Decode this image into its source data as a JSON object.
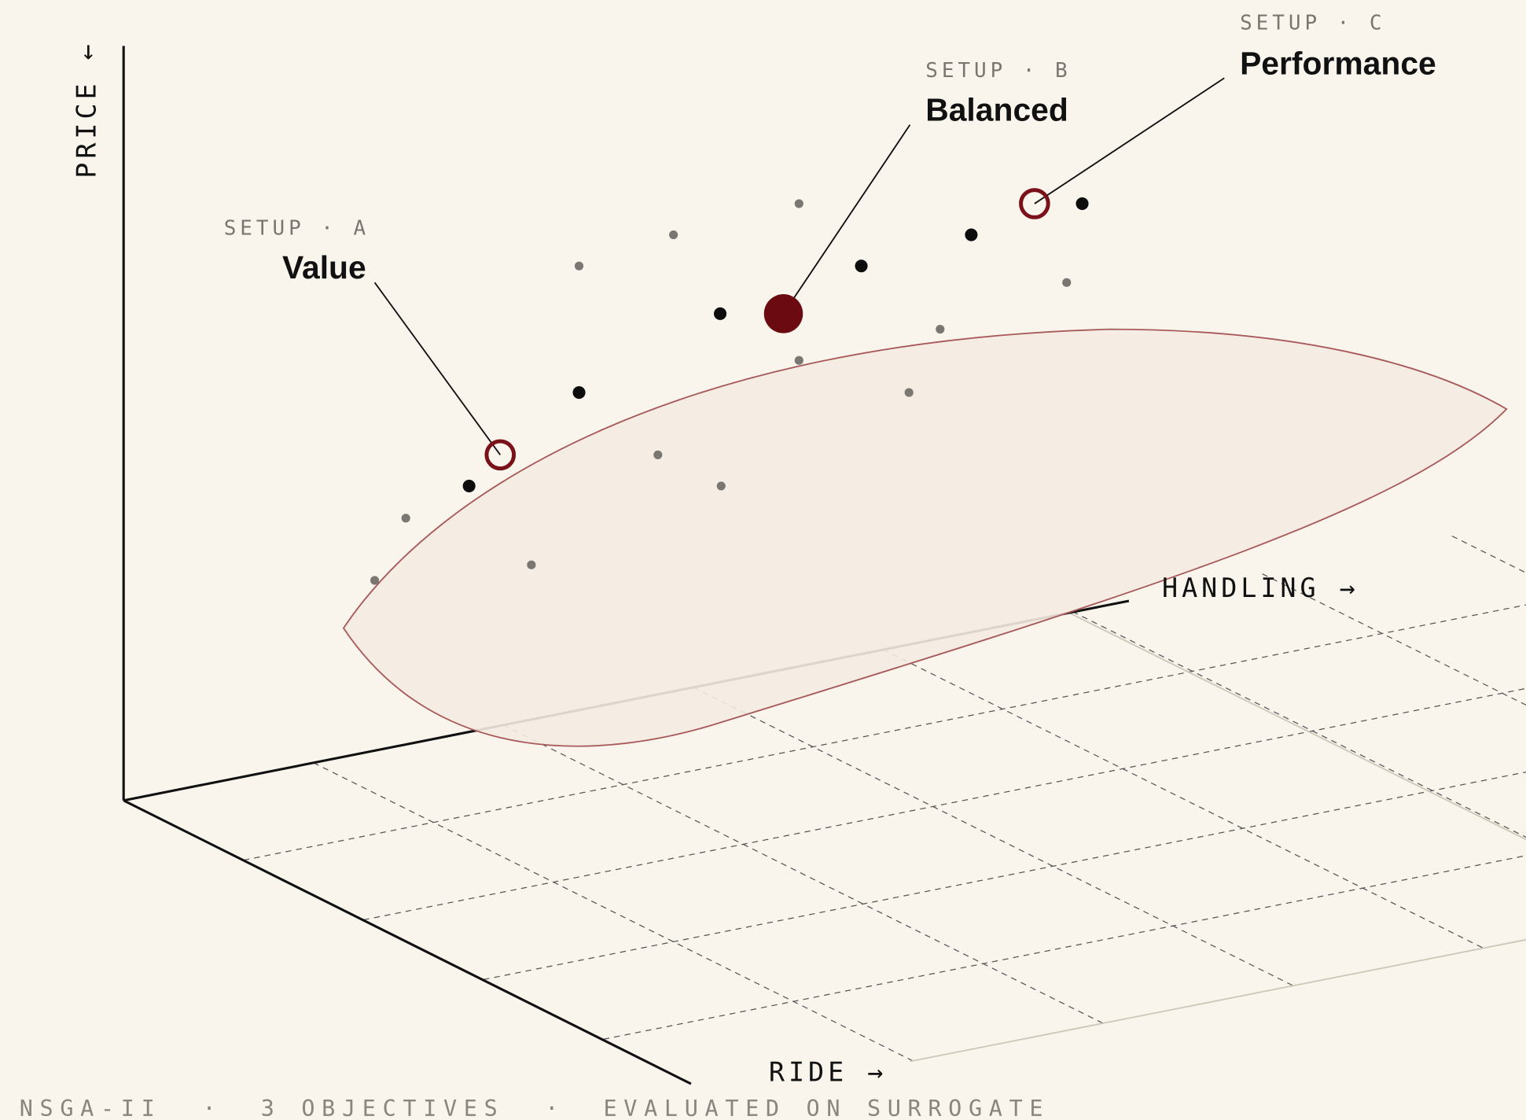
{
  "axes": {
    "price": "PRICE ←",
    "handling": "HANDLING →",
    "ride": "RIDE →"
  },
  "setups": [
    {
      "tag": "SETUP · A",
      "name": "Value"
    },
    {
      "tag": "SETUP · B",
      "name": "Balanced"
    },
    {
      "tag": "SETUP · C",
      "name": "Performance"
    }
  ],
  "footer": [
    "NSGA-II",
    "·",
    "3 OBJECTIVES",
    "·",
    "EVALUATED ON SURROGATE"
  ]
}
